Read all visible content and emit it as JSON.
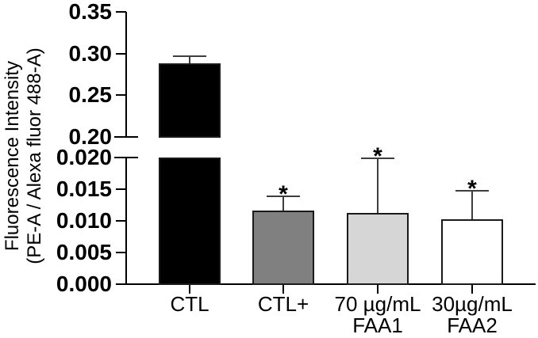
{
  "chart_data": {
    "type": "bar",
    "title": "",
    "ylabel": "Fluorescence Intensity (PE-A / Alexa fluor 488-A)",
    "ylabel_line1": "Fluorescence Intensity",
    "ylabel_line2": "(PE-A / Alexa fluor 488-A)",
    "xlabel": "",
    "categories": [
      "CTL",
      "CTL+",
      "70 µg/mL\nFAA1",
      "30µg/mL\nFAA2"
    ],
    "series": [
      {
        "name": "Fluorescence Intensity (PE-A / Alexa fluor 488-A)",
        "values": [
          0.288,
          0.0116,
          0.0112,
          0.0102
        ]
      }
    ],
    "error_plus": [
      0.009,
      0.0023,
      0.0087,
      0.0045
    ],
    "significance_labels": [
      "",
      "*",
      "*",
      "*"
    ],
    "bar_fill_colors": [
      "#000000",
      "#808080",
      "#d6d6d6",
      "#ffffff"
    ],
    "bar_border_color": "#1a1a1a",
    "error_bar_color": "#3d3d3d",
    "text_color": "#000000",
    "background_color": "#ffffff",
    "axis_break": true,
    "top_axis": {
      "range": [
        0.2,
        0.35
      ],
      "tick_labels": [
        "0.20",
        "0.25",
        "0.30",
        "0.35"
      ]
    },
    "bottom_axis": {
      "range": [
        0.0,
        0.02
      ],
      "tick_labels": [
        "0.000",
        "0.005",
        "0.010",
        "0.015",
        "0.020"
      ]
    },
    "grid": false,
    "legend_position": "none"
  }
}
